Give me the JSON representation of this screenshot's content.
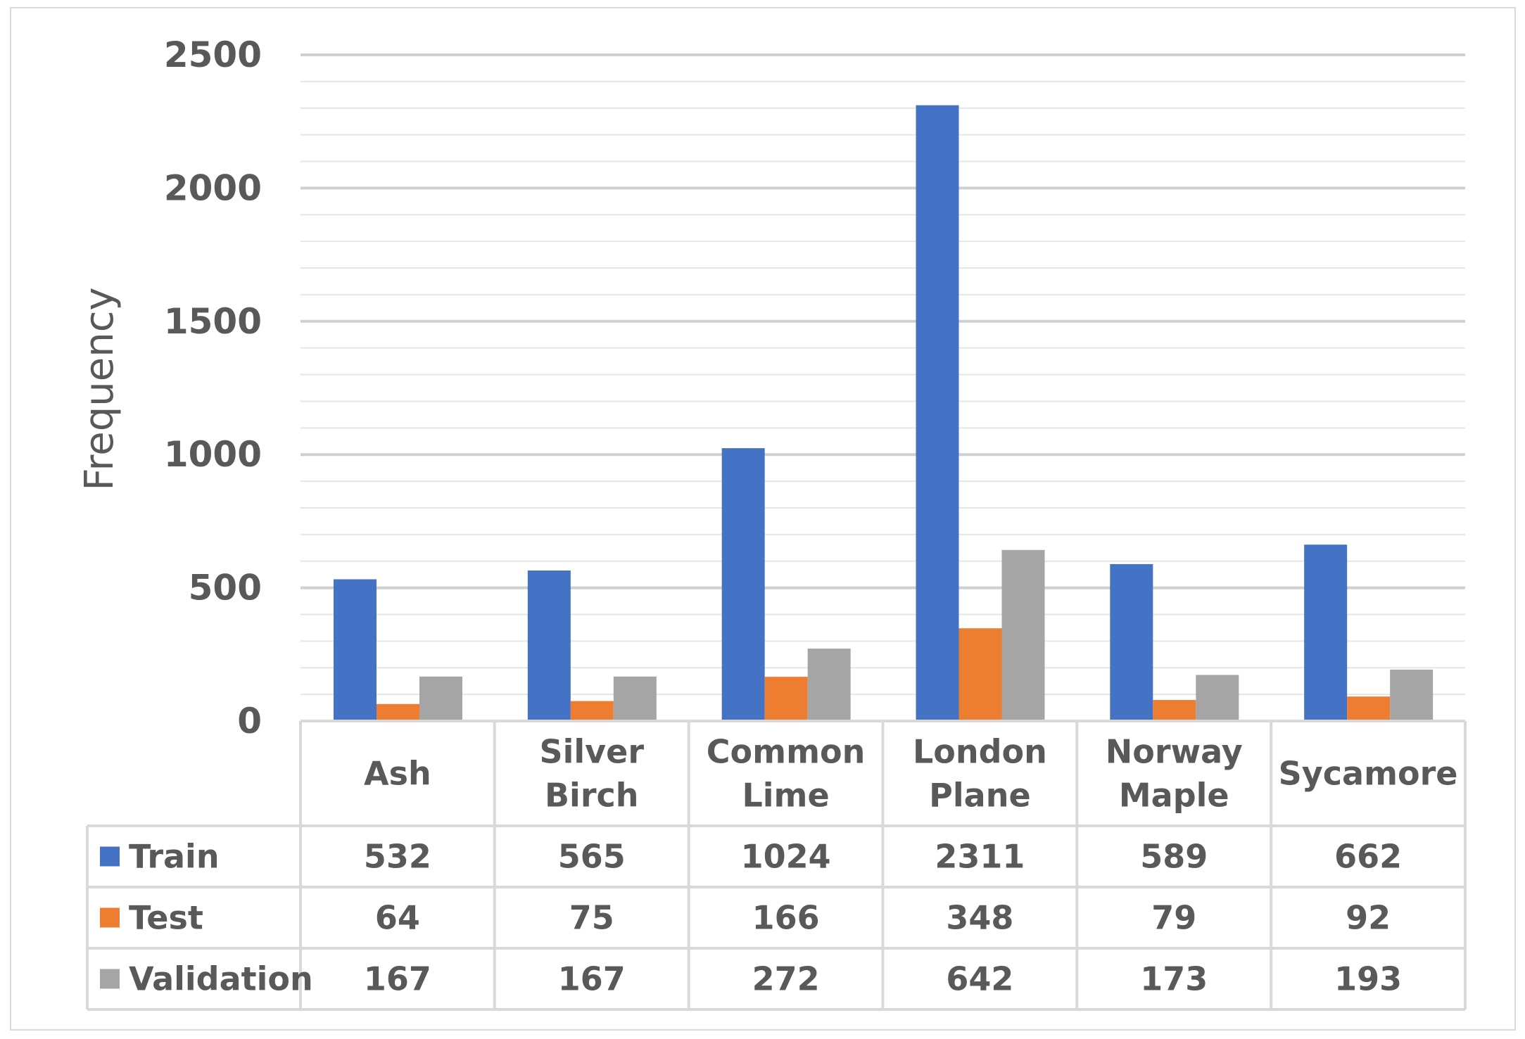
{
  "chart_data": {
    "type": "bar",
    "ylabel": "Frequency",
    "ylim": [
      0,
      2500
    ],
    "yticks": [
      0,
      500,
      1000,
      1500,
      2000,
      2500
    ],
    "grid": true,
    "legend": "data-table",
    "categories": [
      [
        "Ash"
      ],
      [
        "Silver",
        "Birch"
      ],
      [
        "Common",
        "Lime"
      ],
      [
        "London",
        "Plane"
      ],
      [
        "Norway",
        "Maple"
      ],
      [
        "Sycamore"
      ]
    ],
    "series": [
      {
        "name": "Train",
        "color": "#4472c4",
        "values": [
          532,
          565,
          1024,
          2311,
          589,
          662
        ]
      },
      {
        "name": "Test",
        "color": "#ed7d31",
        "values": [
          64,
          75,
          166,
          348,
          79,
          92
        ]
      },
      {
        "name": "Validation",
        "color": "#a5a5a5",
        "values": [
          167,
          167,
          272,
          642,
          173,
          193
        ]
      }
    ]
  }
}
